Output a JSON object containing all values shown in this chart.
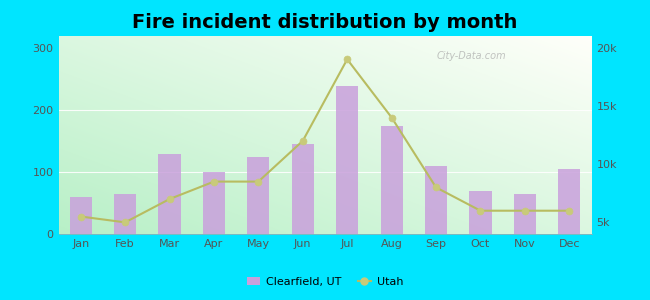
{
  "months": [
    "Jan",
    "Feb",
    "Mar",
    "Apr",
    "May",
    "Jun",
    "Jul",
    "Aug",
    "Sep",
    "Oct",
    "Nov",
    "Dec"
  ],
  "clearfield_values": [
    60,
    65,
    130,
    100,
    125,
    145,
    240,
    175,
    110,
    70,
    65,
    105
  ],
  "utah_values": [
    5500,
    5000,
    7000,
    8500,
    8500,
    12000,
    19000,
    14000,
    8000,
    6000,
    6000,
    6000
  ],
  "bar_color": "#c9a0dc",
  "bar_alpha": 0.85,
  "line_color": "#b8bc60",
  "marker_color": "#c8ca7a",
  "title": "Fire incident distribution by month",
  "title_fontsize": 14,
  "legend_clearfield": "Clearfield, UT",
  "legend_utah": "Utah",
  "ylim_left": [
    0,
    320
  ],
  "ylim_right": [
    4000,
    21000
  ],
  "yticks_left": [
    0,
    100,
    200,
    300
  ],
  "yticks_right": [
    5000,
    10000,
    15000,
    20000
  ],
  "ytick_labels_right": [
    "5k",
    "10k",
    "15k",
    "20k"
  ],
  "bg_color": "#00e5ff",
  "grad_bottom_left": "#b8f0c8",
  "grad_top_right": "#f0fff8",
  "watermark": "City-Data.com",
  "grid_color": "#dddddd",
  "tick_color": "#555555"
}
